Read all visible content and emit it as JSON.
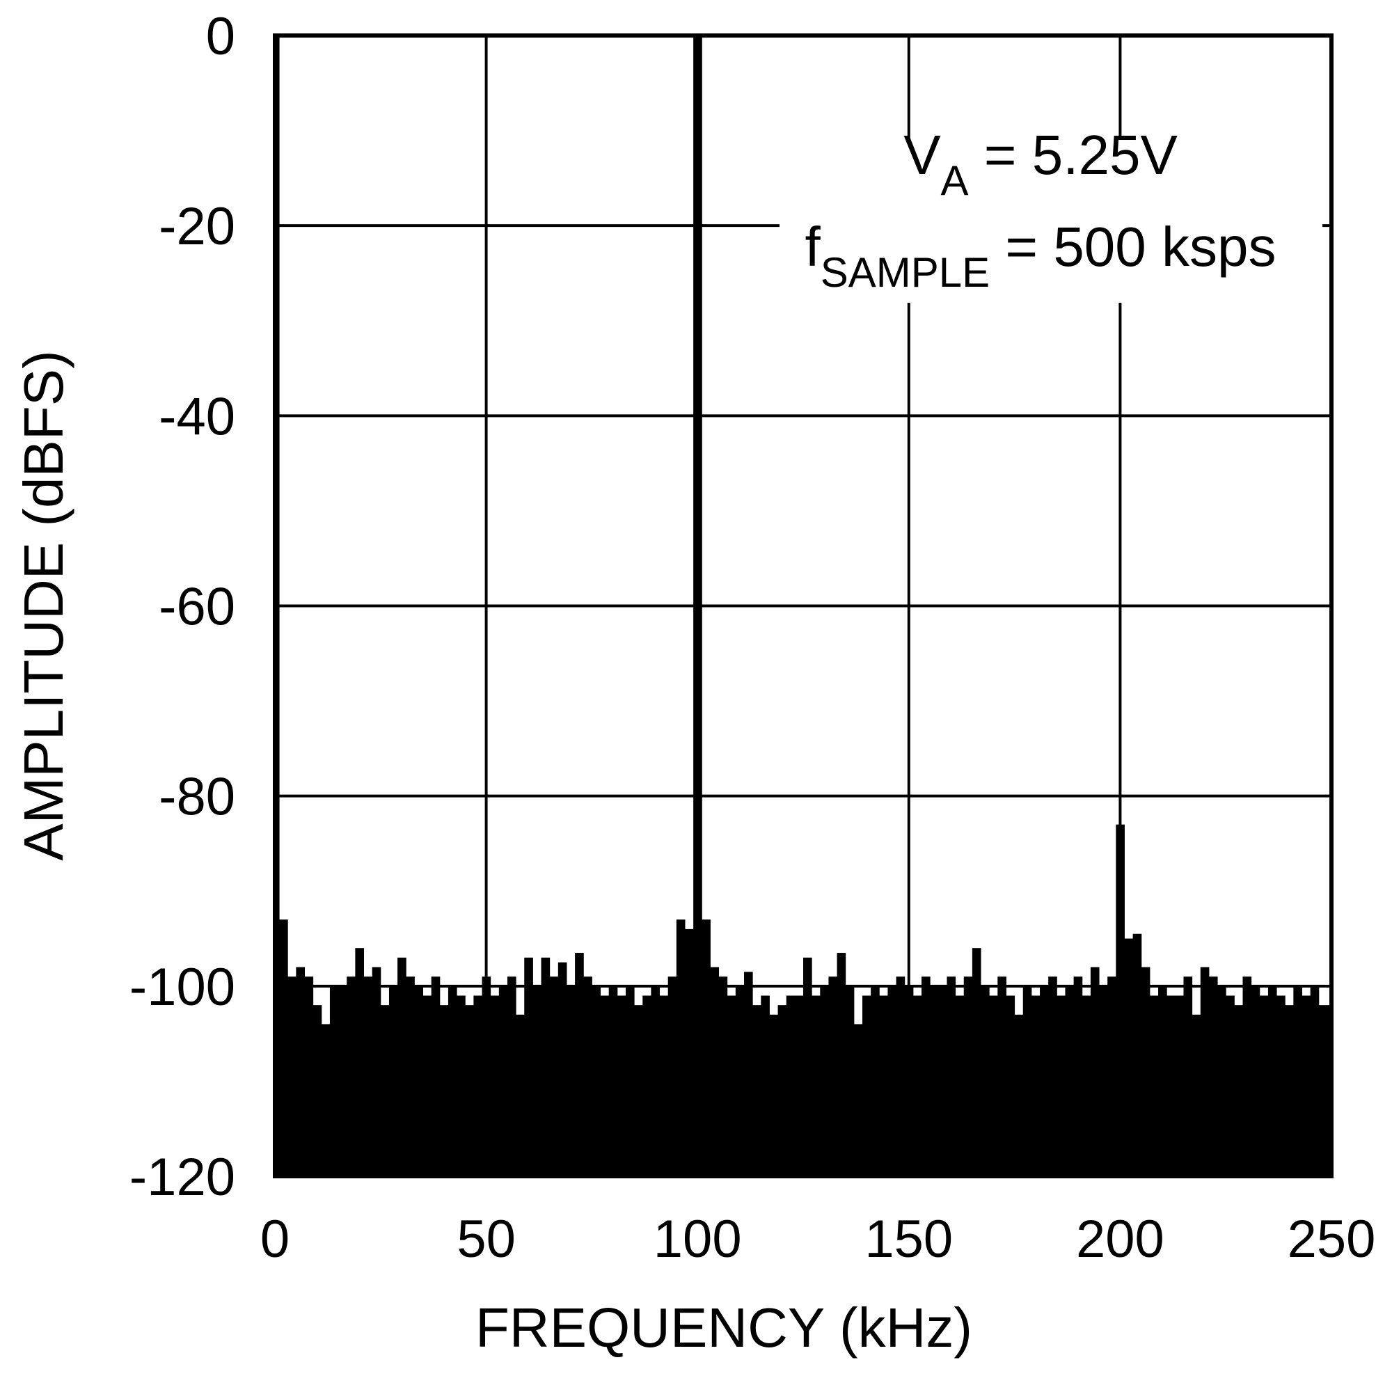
{
  "chart_data": {
    "type": "bar",
    "x_label": "FREQUENCY (kHz)",
    "y_label": "AMPLITUDE (dBFS)",
    "annotations": [
      [
        "V",
        "A",
        " = 5.25V"
      ],
      [
        "f",
        "SAMPLE",
        " = 500 ksps"
      ]
    ],
    "xlim": [
      0,
      250
    ],
    "xticks": [
      0,
      50,
      100,
      150,
      200,
      250
    ],
    "ylim": [
      -120,
      0
    ],
    "yticks": [
      0,
      -20,
      -40,
      -60,
      -80,
      -100,
      -120
    ],
    "grid": true,
    "color": "#000000",
    "x": [
      0,
      2,
      4,
      6,
      8,
      10,
      12,
      14,
      16,
      18,
      20,
      22,
      24,
      26,
      28,
      30,
      32,
      34,
      36,
      38,
      40,
      42,
      44,
      46,
      48,
      50,
      52,
      54,
      56,
      58,
      60,
      62,
      64,
      66,
      68,
      70,
      72,
      74,
      76,
      78,
      80,
      82,
      84,
      86,
      88,
      90,
      92,
      94,
      96,
      98,
      100,
      102,
      104,
      106,
      108,
      110,
      112,
      114,
      116,
      118,
      120,
      122,
      124,
      126,
      128,
      130,
      132,
      134,
      136,
      138,
      140,
      142,
      144,
      146,
      148,
      150,
      152,
      154,
      156,
      158,
      160,
      162,
      164,
      166,
      168,
      170,
      172,
      174,
      176,
      178,
      180,
      182,
      184,
      186,
      188,
      190,
      192,
      194,
      196,
      198,
      200,
      202,
      204,
      206,
      208,
      210,
      212,
      214,
      216,
      218,
      220,
      222,
      224,
      226,
      228,
      230,
      232,
      234,
      236,
      238,
      240,
      242,
      244,
      246,
      248,
      250
    ],
    "values": [
      0,
      -93,
      -99,
      -98,
      -99,
      -102,
      -104,
      -100,
      -100,
      -99,
      -96,
      -99,
      -98,
      -102,
      -100,
      -97,
      -99,
      -100,
      -101,
      -99,
      -102,
      -100,
      -101,
      -102,
      -101,
      -99,
      -101,
      -100,
      -99,
      -103,
      -97,
      -100,
      -97,
      -99,
      -97.5,
      -100,
      -96.5,
      -99,
      -100,
      -101,
      -100,
      -101,
      -100,
      -102,
      -101,
      -100,
      -101,
      -99,
      -93,
      -94,
      0,
      -93,
      -98,
      -99,
      -101,
      -100,
      -98.5,
      -102,
      -101,
      -103,
      -102,
      -101,
      -101,
      -97,
      -101,
      -100,
      -99,
      -96.5,
      -100,
      -104,
      -101,
      -100,
      -101,
      -100,
      -99,
      -100,
      -101,
      -99,
      -100,
      -100,
      -99,
      -101,
      -99,
      -96,
      -100,
      -101,
      -99,
      -101,
      -103,
      -100,
      -101,
      -100,
      -99,
      -101,
      -100,
      -99,
      -101,
      -98,
      -100,
      -99,
      -83,
      -95,
      -94.5,
      -98,
      -101,
      -100,
      -101,
      -101,
      -99,
      -103,
      -98,
      -99,
      -100,
      -101,
      -102,
      -99,
      -100,
      -101,
      -100,
      -101,
      -102,
      -100,
      -101,
      -100,
      -102,
      -102
    ]
  }
}
